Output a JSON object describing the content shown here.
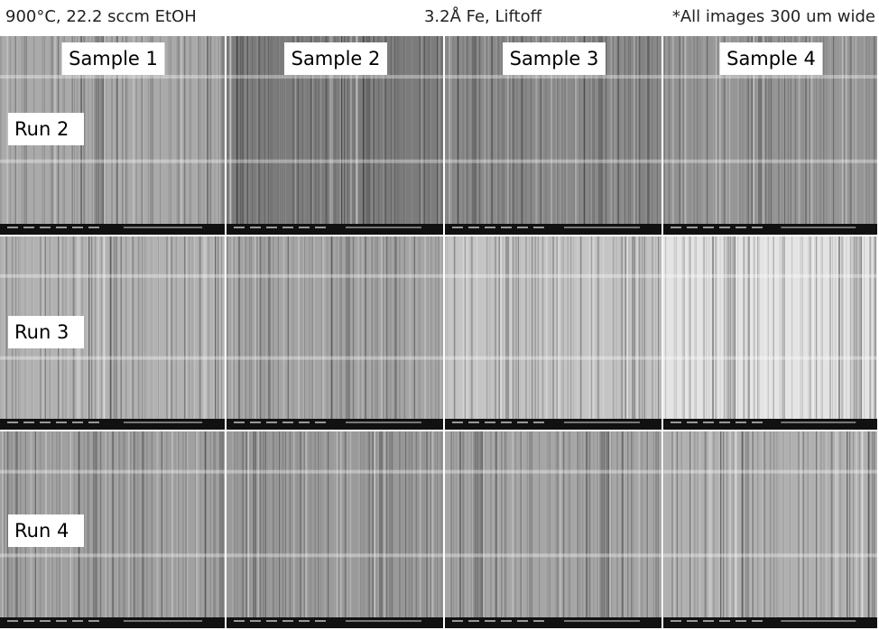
{
  "header": {
    "left": "900°C, 22.2 sccm EtOH",
    "center": "3.2Å Fe, Liftoff",
    "right": "*All images 300 um wide"
  },
  "columns": [
    "Sample 1",
    "Sample 2",
    "Sample 3",
    "Sample 4"
  ],
  "rows": [
    "Run 2",
    "Run 3",
    "Run 4"
  ]
}
